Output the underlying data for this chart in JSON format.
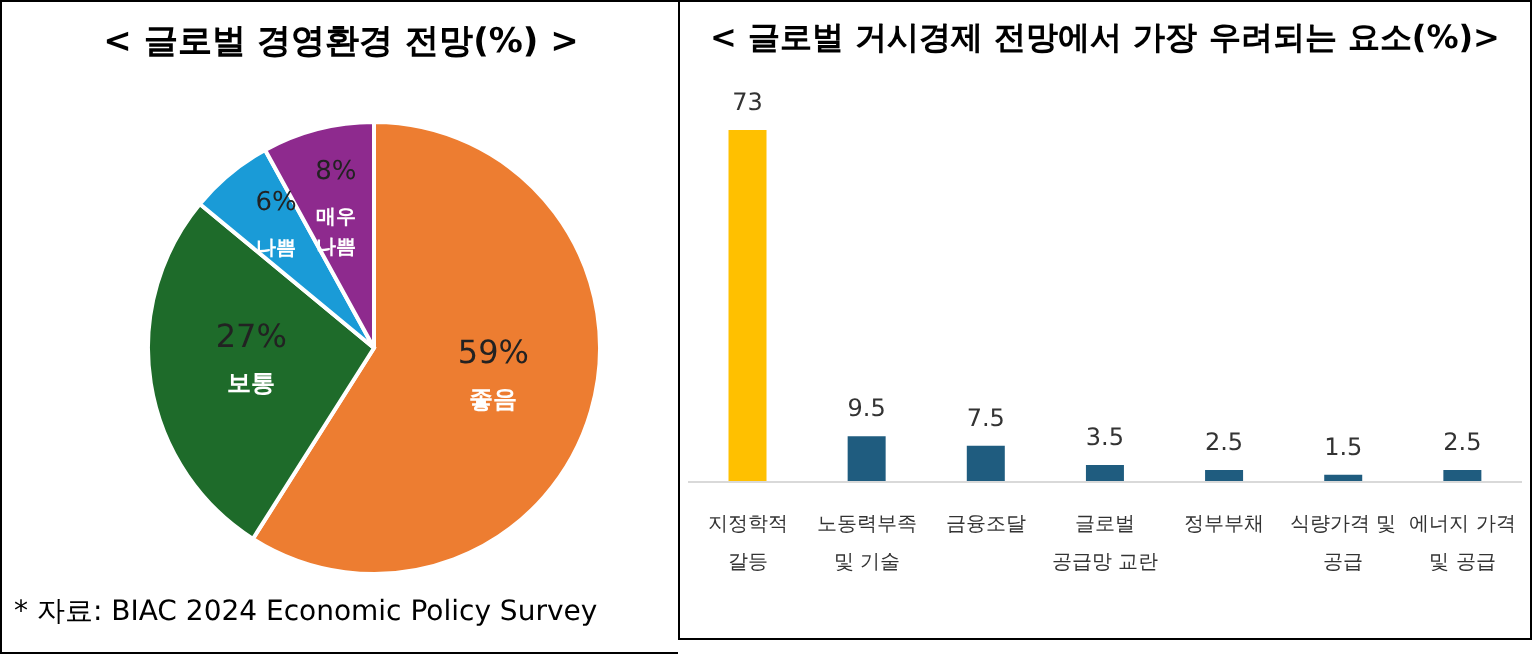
{
  "chart_data": [
    {
      "type": "pie",
      "title": "< 글로벌 경영환경 전망(%) >",
      "categories": [
        "좋음",
        "보통",
        "나쁨",
        "매우 나쁨"
      ],
      "values": [
        59,
        27,
        6,
        8
      ],
      "colors": [
        "#ed7d31",
        "#1e6b2a",
        "#1a9bd7",
        "#8e2a8e"
      ],
      "value_labels": [
        "59%",
        "27%",
        "6%",
        "8%"
      ],
      "annotations": [
        "* 자료: BIAC 2024 Economic Policy Survey"
      ]
    },
    {
      "type": "bar",
      "title": "< 글로벌 거시경제 전망에서 가장 우려되는 요소(%)>",
      "categories": [
        "지정학적 갈등",
        "노동력부족 및 기술",
        "금융조달",
        "글로벌 공급망 교란",
        "정부부채",
        "식량가격 및 공급",
        "에너지 가격 및 공급"
      ],
      "values": [
        73,
        9.5,
        7.5,
        3.5,
        2.5,
        1.5,
        2.5
      ],
      "colors": [
        "#ffc000",
        "#1f5c7f",
        "#1f5c7f",
        "#1f5c7f",
        "#1f5c7f",
        "#1f5c7f",
        "#1f5c7f"
      ],
      "data_labels": true
    }
  ]
}
